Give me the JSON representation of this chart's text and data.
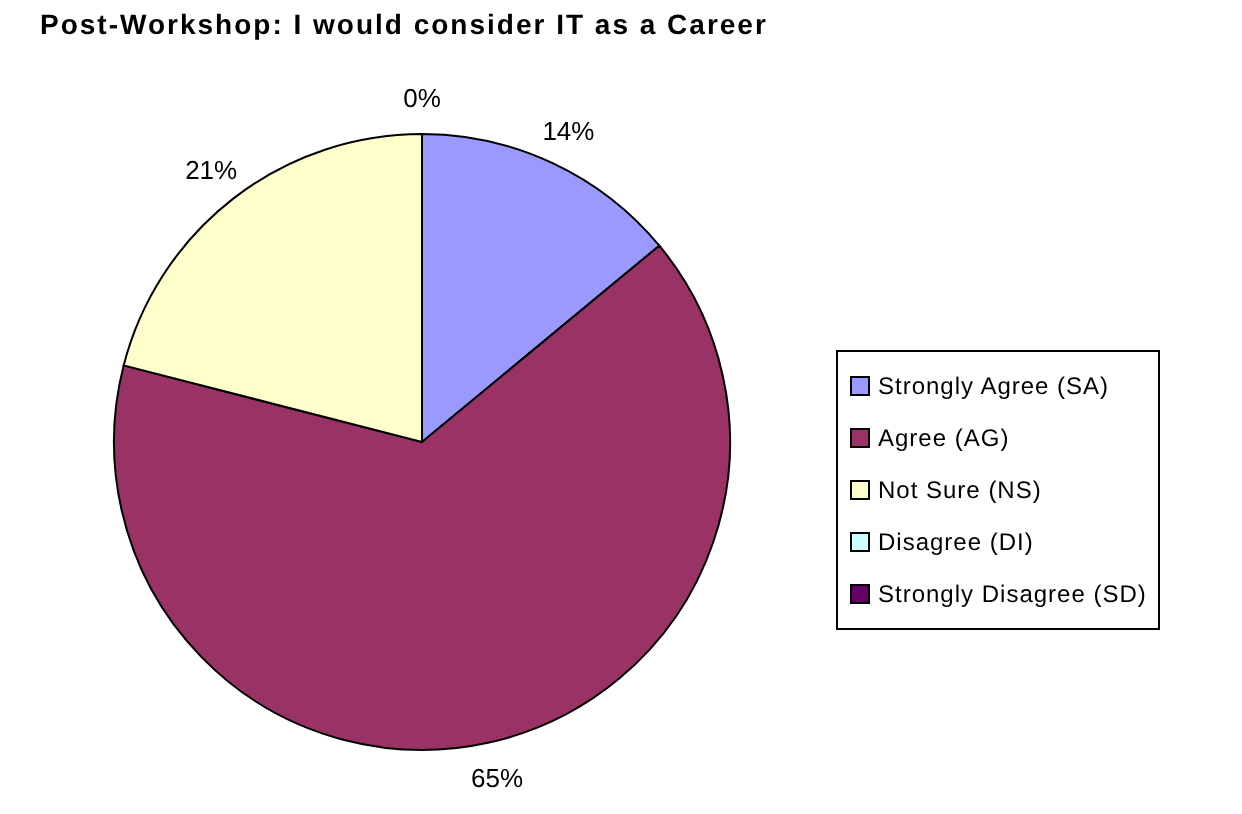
{
  "chart_data": {
    "type": "pie",
    "title": "Post-Workshop: I would consider IT as a Career",
    "categories": [
      "Strongly Agree (SA)",
      "Agree (AG)",
      "Not Sure (NS)",
      "Disagree (DI)",
      "Strongly Disagree (SD)"
    ],
    "values": [
      14,
      65,
      21,
      0,
      0
    ],
    "colors": [
      "#9999ff",
      "#993366",
      "#ffffcc",
      "#ccffff",
      "#660066"
    ],
    "value_labels": [
      "14%",
      "65%",
      "21%",
      "0%",
      null
    ],
    "legend": "right"
  }
}
